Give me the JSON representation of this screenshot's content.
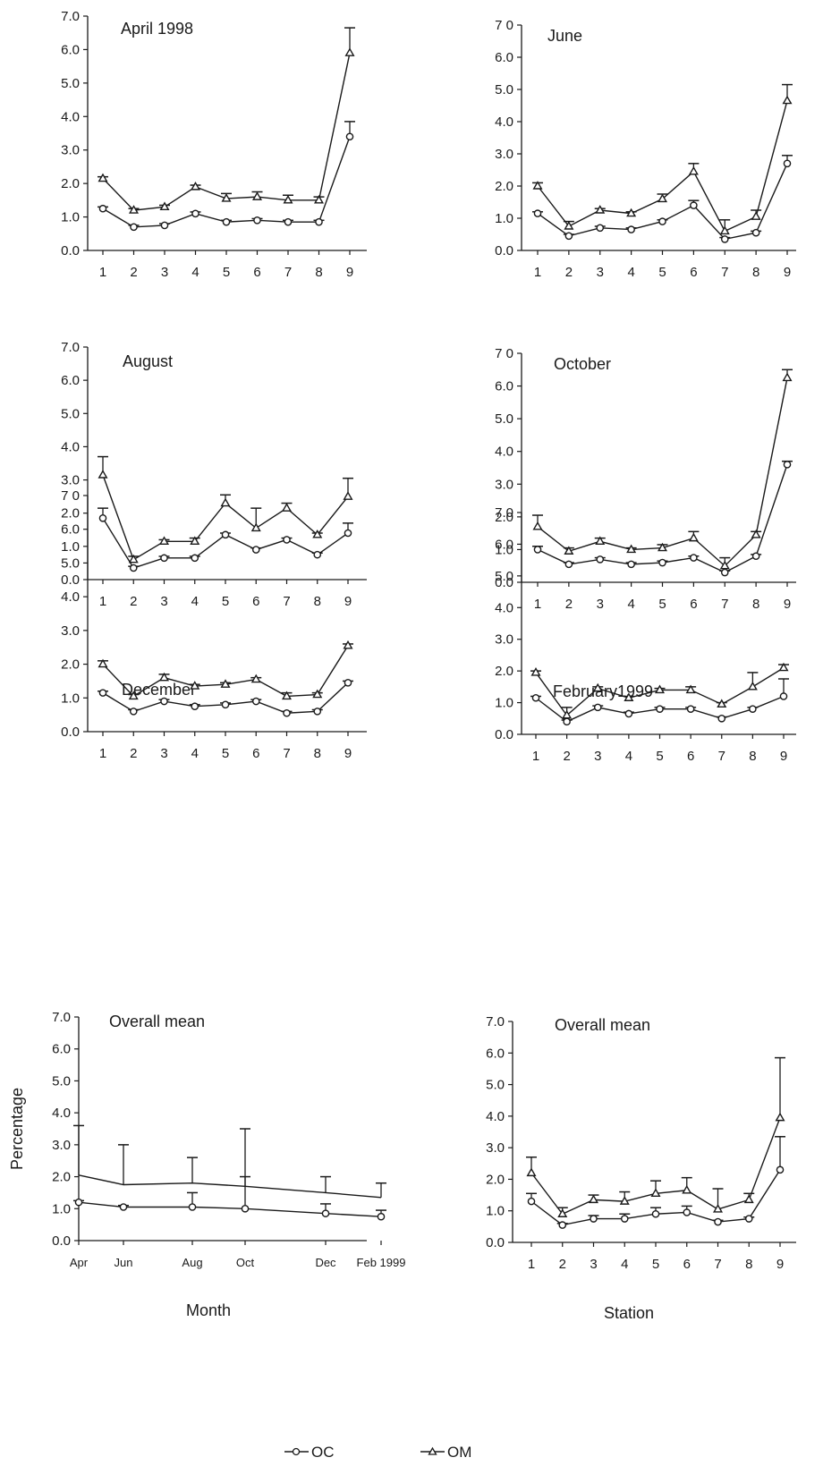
{
  "chart_data": [
    {
      "type": "line",
      "title": "April 1998",
      "x": [
        1,
        2,
        3,
        4,
        5,
        6,
        7,
        8,
        9
      ],
      "x_ticks": [
        "1",
        "2",
        "3",
        "4",
        "5",
        "6",
        "7",
        "8",
        "9"
      ],
      "ylim": [
        0,
        7
      ],
      "y_ticks": [
        "0.0",
        "1.0",
        "2.0",
        "3.0",
        "4.0",
        "5.0",
        "6.0",
        "7.0"
      ],
      "xlabel": "",
      "ylabel": "",
      "series": [
        {
          "name": "OC",
          "marker": "circle",
          "values": [
            1.25,
            0.7,
            0.75,
            1.1,
            0.85,
            0.9,
            0.85,
            0.85,
            3.4
          ],
          "errors": [
            0.05,
            0.05,
            0.05,
            0.05,
            0.05,
            0.05,
            0.05,
            0.05,
            0.45
          ]
        },
        {
          "name": "OM",
          "marker": "triangle",
          "values": [
            2.15,
            1.2,
            1.3,
            1.9,
            1.55,
            1.6,
            1.5,
            1.5,
            5.9
          ],
          "errors": [
            0.05,
            0.05,
            0.05,
            0.05,
            0.15,
            0.15,
            0.15,
            0.1,
            0.75
          ]
        }
      ]
    },
    {
      "type": "line",
      "title": "June",
      "x": [
        1,
        2,
        3,
        4,
        5,
        6,
        7,
        8,
        9
      ],
      "x_ticks": [
        "1",
        "2",
        "3",
        "4",
        "5",
        "6",
        "7",
        "8",
        "9"
      ],
      "ylim": [
        0,
        7
      ],
      "y_ticks": [
        "0.0",
        "1.0",
        "2.0",
        "3.0",
        "4.0",
        "5.0",
        "6.0",
        "7 0"
      ],
      "xlabel": "",
      "ylabel": "",
      "series": [
        {
          "name": "OC",
          "marker": "circle",
          "values": [
            1.15,
            0.45,
            0.7,
            0.65,
            0.9,
            1.4,
            0.35,
            0.55,
            2.7
          ],
          "errors": [
            0.05,
            0.05,
            0.05,
            0.05,
            0.05,
            0.15,
            0.05,
            0.05,
            0.25
          ]
        },
        {
          "name": "OM",
          "marker": "triangle",
          "values": [
            2.0,
            0.75,
            1.25,
            1.15,
            1.6,
            2.45,
            0.6,
            1.05,
            4.65
          ],
          "errors": [
            0.1,
            0.15,
            0.05,
            0.05,
            0.15,
            0.25,
            0.35,
            0.2,
            0.5
          ]
        }
      ]
    },
    {
      "type": "line",
      "title": "August",
      "x": [
        1,
        2,
        3,
        4,
        5,
        6,
        7,
        8,
        9
      ],
      "x_ticks": [
        "1",
        "2",
        "3",
        "4",
        "5",
        "6",
        "7",
        "8",
        "9"
      ],
      "ylim": [
        0,
        7
      ],
      "y_ticks": [
        "0.0",
        "1.0",
        "2.0",
        "3.0",
        "4.0",
        "5.0",
        "6.0",
        "7.0"
      ],
      "xlabel": "",
      "ylabel": "",
      "series": [
        {
          "name": "OC",
          "marker": "circle",
          "values": [
            1.85,
            0.35,
            0.65,
            0.65,
            1.35,
            0.9,
            1.2,
            0.75,
            1.4
          ],
          "errors": [
            0.3,
            0.05,
            0.05,
            0.05,
            0.05,
            0.05,
            0.05,
            0.05,
            0.3
          ]
        },
        {
          "name": "OM",
          "marker": "triangle",
          "values": [
            3.15,
            0.6,
            1.15,
            1.15,
            2.3,
            1.55,
            2.15,
            1.35,
            2.5
          ],
          "errors": [
            0.55,
            0.1,
            0.05,
            0.1,
            0.25,
            0.6,
            0.15,
            0.05,
            0.55
          ]
        }
      ]
    },
    {
      "type": "line",
      "title": "October",
      "x": [
        1,
        2,
        3,
        4,
        5,
        6,
        7,
        8,
        9
      ],
      "x_ticks": [
        "1",
        "2",
        "3",
        "4",
        "5",
        "6",
        "7",
        "8",
        "9"
      ],
      "ylim": [
        0,
        7
      ],
      "y_ticks": [
        "0.0",
        "1.0",
        "2.0",
        "3.0",
        "4.0",
        "5.0",
        "6.0",
        "7 0"
      ],
      "xlabel": "",
      "ylabel": "",
      "series": [
        {
          "name": "OC",
          "marker": "circle",
          "values": [
            1.0,
            0.55,
            0.7,
            0.55,
            0.6,
            0.75,
            0.3,
            0.8,
            3.6
          ],
          "errors": [
            0.1,
            0.05,
            0.05,
            0.05,
            0.05,
            0.05,
            0.05,
            0.05,
            0.1
          ]
        },
        {
          "name": "OM",
          "marker": "triangle",
          "values": [
            1.7,
            0.95,
            1.25,
            1.0,
            1.05,
            1.35,
            0.5,
            1.45,
            6.25
          ],
          "errors": [
            0.35,
            0.1,
            0.1,
            0.05,
            0.1,
            0.2,
            0.25,
            0.1,
            0.25
          ]
        }
      ]
    },
    {
      "type": "line",
      "title": "December",
      "x": [
        1,
        2,
        3,
        4,
        5,
        6,
        7,
        8,
        9
      ],
      "x_ticks": [
        "1",
        "2",
        "3",
        "4",
        "5",
        "6",
        "7",
        "8",
        "9"
      ],
      "ylim": [
        0,
        7
      ],
      "y_ticks": [
        "0.0",
        "1.0",
        "2.0",
        "3.0",
        "4.0",
        "5.0",
        "6.0",
        "7 0"
      ],
      "xlabel": "",
      "ylabel": "",
      "series": [
        {
          "name": "OC",
          "marker": "circle",
          "values": [
            1.15,
            0.6,
            0.9,
            0.75,
            0.8,
            0.9,
            0.55,
            0.6,
            1.45
          ],
          "errors": [
            0.05,
            0.05,
            0.05,
            0.05,
            0.05,
            0.05,
            0.05,
            0.05,
            0.05
          ]
        },
        {
          "name": "OM",
          "marker": "triangle",
          "values": [
            2.0,
            1.05,
            1.6,
            1.35,
            1.4,
            1.55,
            1.05,
            1.1,
            2.55
          ],
          "errors": [
            0.1,
            0.05,
            0.1,
            0.05,
            0.05,
            0.05,
            0.1,
            0.05,
            0.05
          ]
        }
      ]
    },
    {
      "type": "line",
      "title": "February1999",
      "x": [
        1,
        2,
        3,
        4,
        5,
        6,
        7,
        8,
        9
      ],
      "x_ticks": [
        "1",
        "2",
        "3",
        "4",
        "5",
        "6",
        "7",
        "8",
        "9"
      ],
      "ylim": [
        0,
        7
      ],
      "y_ticks": [
        "0.0",
        "1.0",
        "2.0",
        "3.0",
        "4.0",
        "5.0",
        "6.0",
        "7.0"
      ],
      "xlabel": "",
      "ylabel": "",
      "series": [
        {
          "name": "OC",
          "marker": "circle",
          "values": [
            1.15,
            0.4,
            0.85,
            0.65,
            0.8,
            0.8,
            0.5,
            0.8,
            1.2
          ],
          "errors": [
            0.05,
            0.05,
            0.05,
            0.05,
            0.05,
            0.05,
            0.05,
            0.05,
            0.55
          ]
        },
        {
          "name": "OM",
          "marker": "triangle",
          "values": [
            1.95,
            0.6,
            1.45,
            1.15,
            1.4,
            1.4,
            0.95,
            1.5,
            2.1
          ],
          "errors": [
            0.05,
            0.25,
            0.05,
            0.05,
            0.05,
            0.1,
            0.05,
            0.45,
            0.1
          ]
        }
      ]
    },
    {
      "type": "line",
      "title": "Overall mean",
      "x": [
        "Apr",
        "Jun",
        "Aug",
        "Oct",
        "Dec",
        "Feb 1999"
      ],
      "x_ticks": [
        "Apr",
        "Jun",
        "Aug",
        "Oct",
        "Dec",
        "Feb 1999"
      ],
      "ylim": [
        0,
        7
      ],
      "y_ticks": [
        "0.0",
        "1.0",
        "2.0",
        "3.0",
        "4.0",
        "5.0",
        "6.0",
        "7.0"
      ],
      "xlabel": "Month",
      "ylabel": "Percentage",
      "series": [
        {
          "name": "OC",
          "marker": "circle",
          "values": [
            1.2,
            1.05,
            1.05,
            1.0,
            0.85,
            0.75
          ],
          "errors": [
            0.05,
            0.05,
            0.45,
            1.0,
            0.3,
            0.2
          ]
        },
        {
          "name": "OM",
          "marker": "none",
          "values": [
            2.05,
            1.75,
            1.8,
            1.7,
            1.5,
            1.35
          ],
          "errors": [
            1.55,
            1.25,
            0.8,
            1.8,
            0.5,
            0.45
          ]
        }
      ]
    },
    {
      "type": "line",
      "title": "Overall mean",
      "x": [
        1,
        2,
        3,
        4,
        5,
        6,
        7,
        8,
        9
      ],
      "x_ticks": [
        "1",
        "2",
        "3",
        "4",
        "5",
        "6",
        "7",
        "8",
        "9"
      ],
      "ylim": [
        0,
        7
      ],
      "y_ticks": [
        "0.0",
        "1.0",
        "2.0",
        "3.0",
        "4.0",
        "5.0",
        "6.0",
        "7.0"
      ],
      "xlabel": "Station",
      "ylabel": "",
      "series": [
        {
          "name": "OC",
          "marker": "circle",
          "values": [
            1.3,
            0.55,
            0.75,
            0.75,
            0.9,
            0.95,
            0.65,
            0.75,
            2.3
          ],
          "errors": [
            0.25,
            0.05,
            0.1,
            0.15,
            0.2,
            0.2,
            0.05,
            0.05,
            1.05
          ]
        },
        {
          "name": "OM",
          "marker": "triangle",
          "values": [
            2.2,
            0.9,
            1.35,
            1.3,
            1.55,
            1.65,
            1.05,
            1.35,
            3.95
          ],
          "errors": [
            0.5,
            0.2,
            0.15,
            0.3,
            0.4,
            0.4,
            0.65,
            0.2,
            1.9
          ]
        }
      ]
    }
  ],
  "legend": [
    {
      "label": "OC",
      "marker": "circle"
    },
    {
      "label": "OM",
      "marker": "triangle"
    }
  ]
}
